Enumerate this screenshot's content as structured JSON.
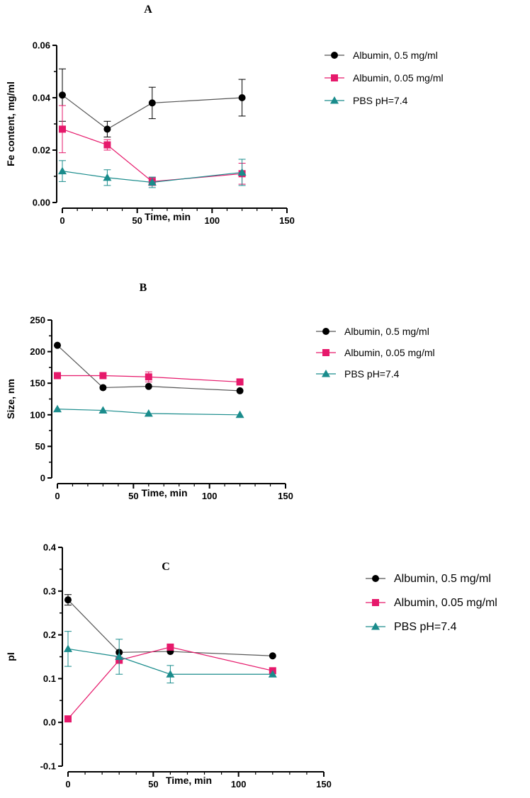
{
  "chart_data": [
    {
      "type": "line",
      "panel_label": "A",
      "xlabel": "Time, min",
      "ylabel": "Fe content, mg/ml",
      "xlim": [
        0,
        150
      ],
      "ylim": [
        0,
        0.06
      ],
      "xticks": [
        0,
        50,
        100,
        150
      ],
      "xtick_labels": [
        "0",
        "50",
        "100",
        "150"
      ],
      "yticks": [
        0,
        0.02,
        0.04,
        0.06
      ],
      "ytick_labels": [
        "0.00",
        "0.02",
        "0.04",
        "0.06"
      ],
      "grid": false,
      "legend_position": "right",
      "x": [
        0,
        30,
        60,
        120
      ],
      "series": [
        {
          "name": "Albumin, 0.5 mg/ml",
          "marker": "circle",
          "color": "#000000",
          "line_color": "#555555",
          "values": [
            0.041,
            0.028,
            0.038,
            0.04
          ],
          "errors": [
            0.01,
            0.003,
            0.006,
            0.007
          ]
        },
        {
          "name": "Albumin, 0.05 mg/ml",
          "marker": "square",
          "color": "#E6196B",
          "line_color": "#E6196B",
          "values": [
            0.028,
            0.022,
            0.008,
            0.011
          ],
          "errors": [
            0.009,
            0.002,
            0.0015,
            0.004
          ]
        },
        {
          "name": "PBS pH=7.4",
          "marker": "triangle",
          "color": "#1A8C8C",
          "line_color": "#1A8C8C",
          "values": [
            0.012,
            0.0095,
            0.0077,
            0.0115
          ],
          "errors": [
            0.004,
            0.003,
            0.002,
            0.005
          ]
        }
      ]
    },
    {
      "type": "line",
      "panel_label": "B",
      "xlabel": "Time, min",
      "ylabel": "Size, nm",
      "xlim": [
        0,
        150
      ],
      "ylim": [
        0,
        250
      ],
      "xticks": [
        0,
        50,
        100,
        150
      ],
      "xtick_labels": [
        "0",
        "50",
        "100",
        "150"
      ],
      "yticks": [
        0,
        50,
        100,
        150,
        200,
        250
      ],
      "ytick_labels": [
        "0",
        "50",
        "100",
        "150",
        "200",
        "250"
      ],
      "grid": false,
      "legend_position": "right",
      "x": [
        0,
        30,
        60,
        120
      ],
      "series": [
        {
          "name": "Albumin, 0.5 mg/ml",
          "marker": "circle",
          "color": "#000000",
          "line_color": "#555555",
          "values": [
            210,
            143,
            145,
            138
          ],
          "errors": [
            0,
            0,
            0,
            0
          ]
        },
        {
          "name": "Albumin, 0.05 mg/ml",
          "marker": "square",
          "color": "#E6196B",
          "line_color": "#E6196B",
          "values": [
            162,
            162,
            160,
            152
          ],
          "errors": [
            0,
            0,
            8,
            0
          ]
        },
        {
          "name": "PBS pH=7.4",
          "marker": "triangle",
          "color": "#1A8C8C",
          "line_color": "#1A8C8C",
          "values": [
            109,
            107,
            102,
            100
          ],
          "errors": [
            0,
            0,
            0,
            0
          ]
        }
      ]
    },
    {
      "type": "line",
      "panel_label": "C",
      "xlabel": "Time, min",
      "ylabel": "pI",
      "xlim": [
        0,
        150
      ],
      "ylim": [
        -0.1,
        0.4
      ],
      "xticks": [
        0,
        50,
        100,
        150
      ],
      "xtick_labels": [
        "0",
        "50",
        "100",
        "150"
      ],
      "yticks": [
        -0.1,
        0,
        0.1,
        0.2,
        0.3,
        0.4
      ],
      "ytick_labels": [
        "-0.1",
        "0.0",
        "0.1",
        "0.2",
        "0.3",
        "0.4"
      ],
      "grid": false,
      "legend_position": "right",
      "x": [
        0,
        30,
        60,
        120
      ],
      "series": [
        {
          "name": "Albumin, 0.5 mg/ml",
          "marker": "circle",
          "color": "#000000",
          "line_color": "#555555",
          "values": [
            0.28,
            0.16,
            0.162,
            0.152
          ],
          "errors": [
            0.012,
            0,
            0,
            0
          ]
        },
        {
          "name": "Albumin, 0.05 mg/ml",
          "marker": "square",
          "color": "#E6196B",
          "line_color": "#E6196B",
          "values": [
            0.008,
            0.142,
            0.172,
            0.118
          ],
          "errors": [
            0,
            0,
            0,
            0
          ]
        },
        {
          "name": "PBS pH=7.4",
          "marker": "triangle",
          "color": "#1A8C8C",
          "line_color": "#1A8C8C",
          "values": [
            0.168,
            0.15,
            0.11,
            0.11
          ],
          "errors": [
            0.04,
            0.04,
            0.02,
            0
          ]
        }
      ]
    }
  ]
}
